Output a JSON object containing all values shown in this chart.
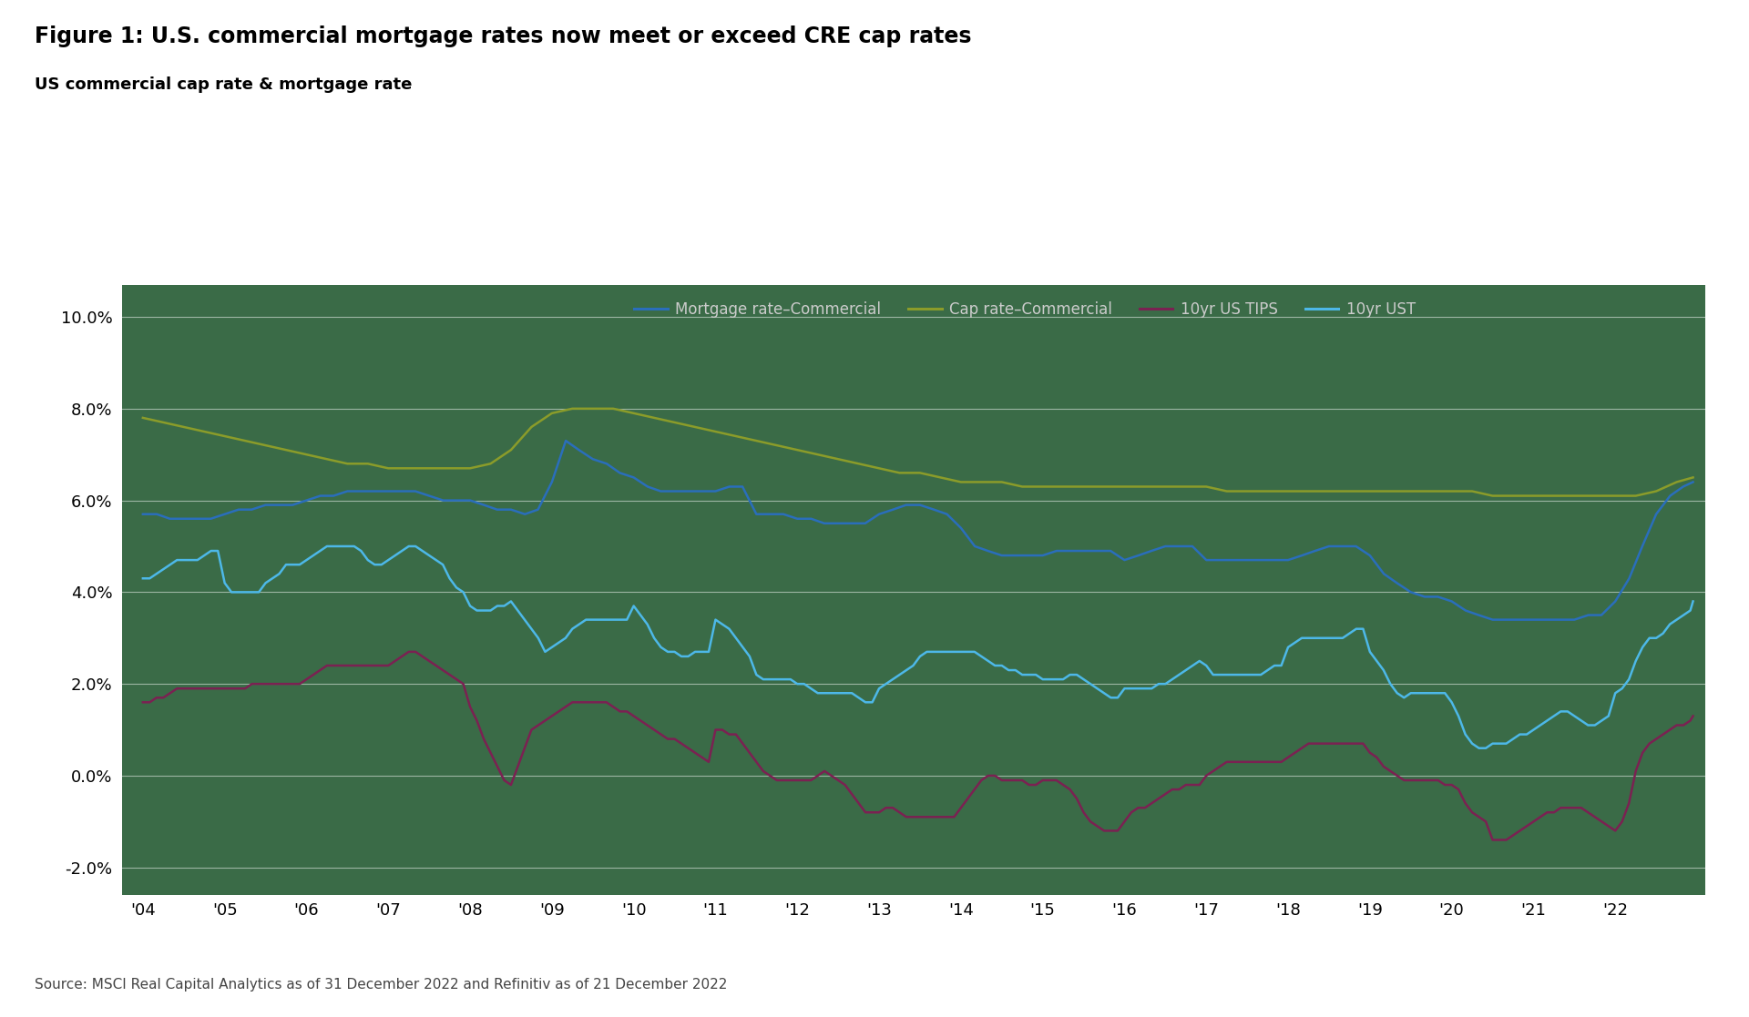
{
  "title": "Figure 1: U.S. commercial mortgage rates now meet or exceed CRE cap rates",
  "subtitle": "US commercial cap rate & mortgage rate",
  "source": "Source: MSCI Real Capital Analytics as of 31 December 2022 and Refinitiv as of 21 December 2022",
  "background_color": "#3a6b47",
  "fig_background": "#ffffff",
  "title_color": "#000000",
  "subtitle_color": "#000000",
  "tick_label_color": "#000000",
  "legend_labels": [
    "Mortgage rate–Commercial",
    "Cap rate–Commercial",
    "10yr US TIPS",
    "10yr UST"
  ],
  "legend_colors": [
    "#2a6ebb",
    "#8b9c2a",
    "#7b2152",
    "#4db8e8"
  ],
  "line_colors": {
    "mortgage": "#2a6ebb",
    "cap_rate": "#8b9c2a",
    "tips": "#7b2152",
    "ust": "#4db8e8"
  },
  "ylim": [
    -0.026,
    0.107
  ],
  "yticks": [
    -0.02,
    0.0,
    0.02,
    0.04,
    0.06,
    0.08,
    0.1
  ],
  "ytick_labels": [
    "-2.0%",
    "0.0%",
    "2.0%",
    "4.0%",
    "6.0%",
    "8.0%",
    "10.0%"
  ],
  "mortgage_x": [
    2004.0,
    2004.17,
    2004.33,
    2004.5,
    2004.67,
    2004.83,
    2005.0,
    2005.17,
    2005.33,
    2005.5,
    2005.67,
    2005.83,
    2006.0,
    2006.17,
    2006.33,
    2006.5,
    2006.67,
    2006.83,
    2007.0,
    2007.17,
    2007.33,
    2007.5,
    2007.67,
    2007.83,
    2008.0,
    2008.17,
    2008.33,
    2008.5,
    2008.67,
    2008.83,
    2009.0,
    2009.17,
    2009.33,
    2009.5,
    2009.67,
    2009.83,
    2010.0,
    2010.17,
    2010.33,
    2010.5,
    2010.67,
    2010.83,
    2011.0,
    2011.17,
    2011.33,
    2011.5,
    2011.67,
    2011.83,
    2012.0,
    2012.17,
    2012.33,
    2012.5,
    2012.67,
    2012.83,
    2013.0,
    2013.17,
    2013.33,
    2013.5,
    2013.67,
    2013.83,
    2014.0,
    2014.17,
    2014.33,
    2014.5,
    2014.67,
    2014.83,
    2015.0,
    2015.17,
    2015.33,
    2015.5,
    2015.67,
    2015.83,
    2016.0,
    2016.17,
    2016.33,
    2016.5,
    2016.67,
    2016.83,
    2017.0,
    2017.17,
    2017.33,
    2017.5,
    2017.67,
    2017.83,
    2018.0,
    2018.17,
    2018.33,
    2018.5,
    2018.67,
    2018.83,
    2019.0,
    2019.17,
    2019.33,
    2019.5,
    2019.67,
    2019.83,
    2020.0,
    2020.17,
    2020.33,
    2020.5,
    2020.67,
    2020.83,
    2021.0,
    2021.17,
    2021.33,
    2021.5,
    2021.67,
    2021.83,
    2022.0,
    2022.17,
    2022.33,
    2022.5,
    2022.67,
    2022.83,
    2022.95
  ],
  "mortgage_y": [
    0.057,
    0.057,
    0.056,
    0.056,
    0.056,
    0.056,
    0.057,
    0.058,
    0.058,
    0.059,
    0.059,
    0.059,
    0.06,
    0.061,
    0.061,
    0.062,
    0.062,
    0.062,
    0.062,
    0.062,
    0.062,
    0.061,
    0.06,
    0.06,
    0.06,
    0.059,
    0.058,
    0.058,
    0.057,
    0.058,
    0.064,
    0.073,
    0.071,
    0.069,
    0.068,
    0.066,
    0.065,
    0.063,
    0.062,
    0.062,
    0.062,
    0.062,
    0.062,
    0.063,
    0.063,
    0.057,
    0.057,
    0.057,
    0.056,
    0.056,
    0.055,
    0.055,
    0.055,
    0.055,
    0.057,
    0.058,
    0.059,
    0.059,
    0.058,
    0.057,
    0.054,
    0.05,
    0.049,
    0.048,
    0.048,
    0.048,
    0.048,
    0.049,
    0.049,
    0.049,
    0.049,
    0.049,
    0.047,
    0.048,
    0.049,
    0.05,
    0.05,
    0.05,
    0.047,
    0.047,
    0.047,
    0.047,
    0.047,
    0.047,
    0.047,
    0.048,
    0.049,
    0.05,
    0.05,
    0.05,
    0.048,
    0.044,
    0.042,
    0.04,
    0.039,
    0.039,
    0.038,
    0.036,
    0.035,
    0.034,
    0.034,
    0.034,
    0.034,
    0.034,
    0.034,
    0.034,
    0.035,
    0.035,
    0.038,
    0.043,
    0.05,
    0.057,
    0.061,
    0.063,
    0.064
  ],
  "cap_x": [
    2004.0,
    2004.25,
    2004.5,
    2004.75,
    2005.0,
    2005.25,
    2005.5,
    2005.75,
    2006.0,
    2006.25,
    2006.5,
    2006.75,
    2007.0,
    2007.25,
    2007.5,
    2007.75,
    2008.0,
    2008.25,
    2008.5,
    2008.75,
    2009.0,
    2009.25,
    2009.5,
    2009.75,
    2010.0,
    2010.25,
    2010.5,
    2010.75,
    2011.0,
    2011.25,
    2011.5,
    2011.75,
    2012.0,
    2012.25,
    2012.5,
    2012.75,
    2013.0,
    2013.25,
    2013.5,
    2013.75,
    2014.0,
    2014.25,
    2014.5,
    2014.75,
    2015.0,
    2015.25,
    2015.5,
    2015.75,
    2016.0,
    2016.25,
    2016.5,
    2016.75,
    2017.0,
    2017.25,
    2017.5,
    2017.75,
    2018.0,
    2018.25,
    2018.5,
    2018.75,
    2019.0,
    2019.25,
    2019.5,
    2019.75,
    2020.0,
    2020.25,
    2020.5,
    2020.75,
    2021.0,
    2021.25,
    2021.5,
    2021.75,
    2022.0,
    2022.25,
    2022.5,
    2022.75,
    2022.95
  ],
  "cap_y": [
    0.078,
    0.077,
    0.076,
    0.075,
    0.074,
    0.073,
    0.072,
    0.071,
    0.07,
    0.069,
    0.068,
    0.068,
    0.067,
    0.067,
    0.067,
    0.067,
    0.067,
    0.068,
    0.071,
    0.076,
    0.079,
    0.08,
    0.08,
    0.08,
    0.079,
    0.078,
    0.077,
    0.076,
    0.075,
    0.074,
    0.073,
    0.072,
    0.071,
    0.07,
    0.069,
    0.068,
    0.067,
    0.066,
    0.066,
    0.065,
    0.064,
    0.064,
    0.064,
    0.063,
    0.063,
    0.063,
    0.063,
    0.063,
    0.063,
    0.063,
    0.063,
    0.063,
    0.063,
    0.062,
    0.062,
    0.062,
    0.062,
    0.062,
    0.062,
    0.062,
    0.062,
    0.062,
    0.062,
    0.062,
    0.062,
    0.062,
    0.061,
    0.061,
    0.061,
    0.061,
    0.061,
    0.061,
    0.061,
    0.061,
    0.062,
    0.064,
    0.065
  ],
  "tips_x": [
    2004.0,
    2004.083,
    2004.167,
    2004.25,
    2004.333,
    2004.417,
    2004.5,
    2004.583,
    2004.667,
    2004.75,
    2004.833,
    2004.917,
    2005.0,
    2005.083,
    2005.167,
    2005.25,
    2005.333,
    2005.417,
    2005.5,
    2005.583,
    2005.667,
    2005.75,
    2005.833,
    2005.917,
    2006.0,
    2006.083,
    2006.167,
    2006.25,
    2006.333,
    2006.417,
    2006.5,
    2006.583,
    2006.667,
    2006.75,
    2006.833,
    2006.917,
    2007.0,
    2007.083,
    2007.167,
    2007.25,
    2007.333,
    2007.417,
    2007.5,
    2007.583,
    2007.667,
    2007.75,
    2007.833,
    2007.917,
    2008.0,
    2008.083,
    2008.167,
    2008.25,
    2008.333,
    2008.417,
    2008.5,
    2008.583,
    2008.667,
    2008.75,
    2008.833,
    2008.917,
    2009.0,
    2009.083,
    2009.167,
    2009.25,
    2009.333,
    2009.417,
    2009.5,
    2009.583,
    2009.667,
    2009.75,
    2009.833,
    2009.917,
    2010.0,
    2010.083,
    2010.167,
    2010.25,
    2010.333,
    2010.417,
    2010.5,
    2010.583,
    2010.667,
    2010.75,
    2010.833,
    2010.917,
    2011.0,
    2011.083,
    2011.167,
    2011.25,
    2011.333,
    2011.417,
    2011.5,
    2011.583,
    2011.667,
    2011.75,
    2011.833,
    2011.917,
    2012.0,
    2012.083,
    2012.167,
    2012.25,
    2012.333,
    2012.417,
    2012.5,
    2012.583,
    2012.667,
    2012.75,
    2012.833,
    2012.917,
    2013.0,
    2013.083,
    2013.167,
    2013.25,
    2013.333,
    2013.417,
    2013.5,
    2013.583,
    2013.667,
    2013.75,
    2013.833,
    2013.917,
    2014.0,
    2014.083,
    2014.167,
    2014.25,
    2014.333,
    2014.417,
    2014.5,
    2014.583,
    2014.667,
    2014.75,
    2014.833,
    2014.917,
    2015.0,
    2015.083,
    2015.167,
    2015.25,
    2015.333,
    2015.417,
    2015.5,
    2015.583,
    2015.667,
    2015.75,
    2015.833,
    2015.917,
    2016.0,
    2016.083,
    2016.167,
    2016.25,
    2016.333,
    2016.417,
    2016.5,
    2016.583,
    2016.667,
    2016.75,
    2016.833,
    2016.917,
    2017.0,
    2017.083,
    2017.167,
    2017.25,
    2017.333,
    2017.417,
    2017.5,
    2017.583,
    2017.667,
    2017.75,
    2017.833,
    2017.917,
    2018.0,
    2018.083,
    2018.167,
    2018.25,
    2018.333,
    2018.417,
    2018.5,
    2018.583,
    2018.667,
    2018.75,
    2018.833,
    2018.917,
    2019.0,
    2019.083,
    2019.167,
    2019.25,
    2019.333,
    2019.417,
    2019.5,
    2019.583,
    2019.667,
    2019.75,
    2019.833,
    2019.917,
    2020.0,
    2020.083,
    2020.167,
    2020.25,
    2020.333,
    2020.417,
    2020.5,
    2020.583,
    2020.667,
    2020.75,
    2020.833,
    2020.917,
    2021.0,
    2021.083,
    2021.167,
    2021.25,
    2021.333,
    2021.417,
    2021.5,
    2021.583,
    2021.667,
    2021.75,
    2021.833,
    2021.917,
    2022.0,
    2022.083,
    2022.167,
    2022.25,
    2022.333,
    2022.417,
    2022.5,
    2022.583,
    2022.667,
    2022.75,
    2022.833,
    2022.917,
    2022.95
  ],
  "tips_y": [
    0.016,
    0.016,
    0.017,
    0.017,
    0.018,
    0.019,
    0.019,
    0.019,
    0.019,
    0.019,
    0.019,
    0.019,
    0.019,
    0.019,
    0.019,
    0.019,
    0.02,
    0.02,
    0.02,
    0.02,
    0.02,
    0.02,
    0.02,
    0.02,
    0.021,
    0.022,
    0.023,
    0.024,
    0.024,
    0.024,
    0.024,
    0.024,
    0.024,
    0.024,
    0.024,
    0.024,
    0.024,
    0.025,
    0.026,
    0.027,
    0.027,
    0.026,
    0.025,
    0.024,
    0.023,
    0.022,
    0.021,
    0.02,
    0.015,
    0.012,
    0.008,
    0.005,
    0.002,
    -0.001,
    -0.002,
    0.002,
    0.006,
    0.01,
    0.011,
    0.012,
    0.013,
    0.014,
    0.015,
    0.016,
    0.016,
    0.016,
    0.016,
    0.016,
    0.016,
    0.015,
    0.014,
    0.014,
    0.013,
    0.012,
    0.011,
    0.01,
    0.009,
    0.008,
    0.008,
    0.007,
    0.006,
    0.005,
    0.004,
    0.003,
    0.01,
    0.01,
    0.009,
    0.009,
    0.007,
    0.005,
    0.003,
    0.001,
    0.0,
    -0.001,
    -0.001,
    -0.001,
    -0.001,
    -0.001,
    -0.001,
    0.0,
    0.001,
    0.0,
    -0.001,
    -0.002,
    -0.004,
    -0.006,
    -0.008,
    -0.008,
    -0.008,
    -0.007,
    -0.007,
    -0.008,
    -0.009,
    -0.009,
    -0.009,
    -0.009,
    -0.009,
    -0.009,
    -0.009,
    -0.009,
    -0.007,
    -0.005,
    -0.003,
    -0.001,
    0.0,
    0.0,
    -0.001,
    -0.001,
    -0.001,
    -0.001,
    -0.002,
    -0.002,
    -0.001,
    -0.001,
    -0.001,
    -0.002,
    -0.003,
    -0.005,
    -0.008,
    -0.01,
    -0.011,
    -0.012,
    -0.012,
    -0.012,
    -0.01,
    -0.008,
    -0.007,
    -0.007,
    -0.006,
    -0.005,
    -0.004,
    -0.003,
    -0.003,
    -0.002,
    -0.002,
    -0.002,
    0.0,
    0.001,
    0.002,
    0.003,
    0.003,
    0.003,
    0.003,
    0.003,
    0.003,
    0.003,
    0.003,
    0.003,
    0.004,
    0.005,
    0.006,
    0.007,
    0.007,
    0.007,
    0.007,
    0.007,
    0.007,
    0.007,
    0.007,
    0.007,
    0.005,
    0.004,
    0.002,
    0.001,
    0.0,
    -0.001,
    -0.001,
    -0.001,
    -0.001,
    -0.001,
    -0.001,
    -0.002,
    -0.002,
    -0.003,
    -0.006,
    -0.008,
    -0.009,
    -0.01,
    -0.014,
    -0.014,
    -0.014,
    -0.013,
    -0.012,
    -0.011,
    -0.01,
    -0.009,
    -0.008,
    -0.008,
    -0.007,
    -0.007,
    -0.007,
    -0.007,
    -0.008,
    -0.009,
    -0.01,
    -0.011,
    -0.012,
    -0.01,
    -0.006,
    0.001,
    0.005,
    0.007,
    0.008,
    0.009,
    0.01,
    0.011,
    0.011,
    0.012,
    0.013
  ],
  "ust_x": [
    2004.0,
    2004.083,
    2004.167,
    2004.25,
    2004.333,
    2004.417,
    2004.5,
    2004.583,
    2004.667,
    2004.75,
    2004.833,
    2004.917,
    2005.0,
    2005.083,
    2005.167,
    2005.25,
    2005.333,
    2005.417,
    2005.5,
    2005.583,
    2005.667,
    2005.75,
    2005.833,
    2005.917,
    2006.0,
    2006.083,
    2006.167,
    2006.25,
    2006.333,
    2006.417,
    2006.5,
    2006.583,
    2006.667,
    2006.75,
    2006.833,
    2006.917,
    2007.0,
    2007.083,
    2007.167,
    2007.25,
    2007.333,
    2007.417,
    2007.5,
    2007.583,
    2007.667,
    2007.75,
    2007.833,
    2007.917,
    2008.0,
    2008.083,
    2008.167,
    2008.25,
    2008.333,
    2008.417,
    2008.5,
    2008.583,
    2008.667,
    2008.75,
    2008.833,
    2008.917,
    2009.0,
    2009.083,
    2009.167,
    2009.25,
    2009.333,
    2009.417,
    2009.5,
    2009.583,
    2009.667,
    2009.75,
    2009.833,
    2009.917,
    2010.0,
    2010.083,
    2010.167,
    2010.25,
    2010.333,
    2010.417,
    2010.5,
    2010.583,
    2010.667,
    2010.75,
    2010.833,
    2010.917,
    2011.0,
    2011.083,
    2011.167,
    2011.25,
    2011.333,
    2011.417,
    2011.5,
    2011.583,
    2011.667,
    2011.75,
    2011.833,
    2011.917,
    2012.0,
    2012.083,
    2012.167,
    2012.25,
    2012.333,
    2012.417,
    2012.5,
    2012.583,
    2012.667,
    2012.75,
    2012.833,
    2012.917,
    2013.0,
    2013.083,
    2013.167,
    2013.25,
    2013.333,
    2013.417,
    2013.5,
    2013.583,
    2013.667,
    2013.75,
    2013.833,
    2013.917,
    2014.0,
    2014.083,
    2014.167,
    2014.25,
    2014.333,
    2014.417,
    2014.5,
    2014.583,
    2014.667,
    2014.75,
    2014.833,
    2014.917,
    2015.0,
    2015.083,
    2015.167,
    2015.25,
    2015.333,
    2015.417,
    2015.5,
    2015.583,
    2015.667,
    2015.75,
    2015.833,
    2015.917,
    2016.0,
    2016.083,
    2016.167,
    2016.25,
    2016.333,
    2016.417,
    2016.5,
    2016.583,
    2016.667,
    2016.75,
    2016.833,
    2016.917,
    2017.0,
    2017.083,
    2017.167,
    2017.25,
    2017.333,
    2017.417,
    2017.5,
    2017.583,
    2017.667,
    2017.75,
    2017.833,
    2017.917,
    2018.0,
    2018.083,
    2018.167,
    2018.25,
    2018.333,
    2018.417,
    2018.5,
    2018.583,
    2018.667,
    2018.75,
    2018.833,
    2018.917,
    2019.0,
    2019.083,
    2019.167,
    2019.25,
    2019.333,
    2019.417,
    2019.5,
    2019.583,
    2019.667,
    2019.75,
    2019.833,
    2019.917,
    2020.0,
    2020.083,
    2020.167,
    2020.25,
    2020.333,
    2020.417,
    2020.5,
    2020.583,
    2020.667,
    2020.75,
    2020.833,
    2020.917,
    2021.0,
    2021.083,
    2021.167,
    2021.25,
    2021.333,
    2021.417,
    2021.5,
    2021.583,
    2021.667,
    2021.75,
    2021.833,
    2021.917,
    2022.0,
    2022.083,
    2022.167,
    2022.25,
    2022.333,
    2022.417,
    2022.5,
    2022.583,
    2022.667,
    2022.75,
    2022.833,
    2022.917,
    2022.95
  ],
  "ust_y": [
    0.043,
    0.043,
    0.044,
    0.045,
    0.046,
    0.047,
    0.047,
    0.047,
    0.047,
    0.048,
    0.049,
    0.049,
    0.042,
    0.04,
    0.04,
    0.04,
    0.04,
    0.04,
    0.042,
    0.043,
    0.044,
    0.046,
    0.046,
    0.046,
    0.047,
    0.048,
    0.049,
    0.05,
    0.05,
    0.05,
    0.05,
    0.05,
    0.049,
    0.047,
    0.046,
    0.046,
    0.047,
    0.048,
    0.049,
    0.05,
    0.05,
    0.049,
    0.048,
    0.047,
    0.046,
    0.043,
    0.041,
    0.04,
    0.037,
    0.036,
    0.036,
    0.036,
    0.037,
    0.037,
    0.038,
    0.036,
    0.034,
    0.032,
    0.03,
    0.027,
    0.028,
    0.029,
    0.03,
    0.032,
    0.033,
    0.034,
    0.034,
    0.034,
    0.034,
    0.034,
    0.034,
    0.034,
    0.037,
    0.035,
    0.033,
    0.03,
    0.028,
    0.027,
    0.027,
    0.026,
    0.026,
    0.027,
    0.027,
    0.027,
    0.034,
    0.033,
    0.032,
    0.03,
    0.028,
    0.026,
    0.022,
    0.021,
    0.021,
    0.021,
    0.021,
    0.021,
    0.02,
    0.02,
    0.019,
    0.018,
    0.018,
    0.018,
    0.018,
    0.018,
    0.018,
    0.017,
    0.016,
    0.016,
    0.019,
    0.02,
    0.021,
    0.022,
    0.023,
    0.024,
    0.026,
    0.027,
    0.027,
    0.027,
    0.027,
    0.027,
    0.027,
    0.027,
    0.027,
    0.026,
    0.025,
    0.024,
    0.024,
    0.023,
    0.023,
    0.022,
    0.022,
    0.022,
    0.021,
    0.021,
    0.021,
    0.021,
    0.022,
    0.022,
    0.021,
    0.02,
    0.019,
    0.018,
    0.017,
    0.017,
    0.019,
    0.019,
    0.019,
    0.019,
    0.019,
    0.02,
    0.02,
    0.021,
    0.022,
    0.023,
    0.024,
    0.025,
    0.024,
    0.022,
    0.022,
    0.022,
    0.022,
    0.022,
    0.022,
    0.022,
    0.022,
    0.023,
    0.024,
    0.024,
    0.028,
    0.029,
    0.03,
    0.03,
    0.03,
    0.03,
    0.03,
    0.03,
    0.03,
    0.031,
    0.032,
    0.032,
    0.027,
    0.025,
    0.023,
    0.02,
    0.018,
    0.017,
    0.018,
    0.018,
    0.018,
    0.018,
    0.018,
    0.018,
    0.016,
    0.013,
    0.009,
    0.007,
    0.006,
    0.006,
    0.007,
    0.007,
    0.007,
    0.008,
    0.009,
    0.009,
    0.01,
    0.011,
    0.012,
    0.013,
    0.014,
    0.014,
    0.013,
    0.012,
    0.011,
    0.011,
    0.012,
    0.013,
    0.018,
    0.019,
    0.021,
    0.025,
    0.028,
    0.03,
    0.03,
    0.031,
    0.033,
    0.034,
    0.035,
    0.036,
    0.038
  ],
  "xtick_positions": [
    2004,
    2005,
    2006,
    2007,
    2008,
    2009,
    2010,
    2011,
    2012,
    2013,
    2014,
    2015,
    2016,
    2017,
    2018,
    2019,
    2020,
    2021,
    2022
  ],
  "xtick_labels": [
    "'04",
    "'05",
    "'06",
    "'07",
    "'08",
    "'09",
    "'10",
    "'11",
    "'12",
    "'13",
    "'14",
    "'15",
    "'16",
    "'17",
    "'18",
    "'19",
    "'20",
    "'21",
    "'22"
  ],
  "grid_color": "#ffffff",
  "grid_alpha": 0.5,
  "grid_linewidth": 0.8
}
